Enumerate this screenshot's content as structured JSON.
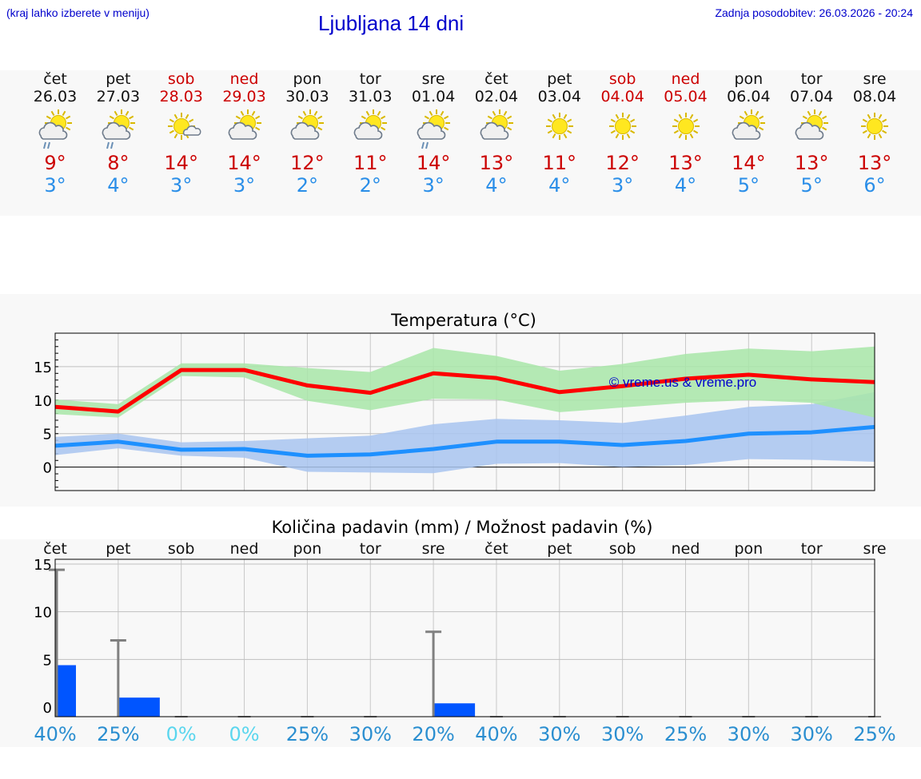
{
  "header": {
    "hint": "(kraj lahko izberete v meniju)",
    "title": "Ljubljana 14 dni",
    "updated": "Zadnja posodobitev: 26.03.2026 - 20:24"
  },
  "days": [
    {
      "name": "čet",
      "date": "26.03",
      "weekend": false,
      "icon": "sun-cloud-rain-icon",
      "tmax": "9°",
      "tmin": "3°"
    },
    {
      "name": "pet",
      "date": "27.03",
      "weekend": false,
      "icon": "sun-cloud-rain-icon",
      "tmax": "8°",
      "tmin": "4°"
    },
    {
      "name": "sob",
      "date": "28.03",
      "weekend": true,
      "icon": "sun-small-cloud-icon",
      "tmax": "14°",
      "tmin": "3°"
    },
    {
      "name": "ned",
      "date": "29.03",
      "weekend": true,
      "icon": "sun-cloud-icon",
      "tmax": "14°",
      "tmin": "3°"
    },
    {
      "name": "pon",
      "date": "30.03",
      "weekend": false,
      "icon": "sun-cloud-icon",
      "tmax": "12°",
      "tmin": "2°"
    },
    {
      "name": "tor",
      "date": "31.03",
      "weekend": false,
      "icon": "sun-cloud-icon",
      "tmax": "11°",
      "tmin": "2°"
    },
    {
      "name": "sre",
      "date": "01.04",
      "weekend": false,
      "icon": "sun-cloud-rain-icon",
      "tmax": "14°",
      "tmin": "3°"
    },
    {
      "name": "čet",
      "date": "02.04",
      "weekend": false,
      "icon": "sun-cloud-icon",
      "tmax": "13°",
      "tmin": "4°"
    },
    {
      "name": "pet",
      "date": "03.04",
      "weekend": false,
      "icon": "sun-icon",
      "tmax": "11°",
      "tmin": "4°"
    },
    {
      "name": "sob",
      "date": "04.04",
      "weekend": true,
      "icon": "sun-icon",
      "tmax": "12°",
      "tmin": "3°"
    },
    {
      "name": "ned",
      "date": "05.04",
      "weekend": true,
      "icon": "sun-icon",
      "tmax": "13°",
      "tmin": "4°"
    },
    {
      "name": "pon",
      "date": "06.04",
      "weekend": false,
      "icon": "sun-cloud-icon",
      "tmax": "14°",
      "tmin": "5°"
    },
    {
      "name": "tor",
      "date": "07.04",
      "weekend": false,
      "icon": "sun-cloud-icon",
      "tmax": "13°",
      "tmin": "5°"
    },
    {
      "name": "sre",
      "date": "08.04",
      "weekend": false,
      "icon": "sun-icon",
      "tmax": "13°",
      "tmin": "6°"
    }
  ],
  "colors": {
    "max_line": "#ff0000",
    "max_band": "#a8e6a8",
    "min_line": "#1e90ff",
    "min_band": "#a8c4f0",
    "precip_bar": "#0055ff",
    "error_bar": "#808080",
    "watermark": "#0000cc"
  },
  "chart_data": [
    {
      "type": "line",
      "title": "Temperatura (°C)",
      "ylim": [
        -3.5,
        20
      ],
      "yticks": [
        0,
        5,
        10,
        15
      ],
      "ytick_labels": [
        "0",
        "5",
        "10",
        "15"
      ],
      "watermark": "© vreme.us & vreme.pro",
      "series": [
        {
          "name": "max",
          "values": [
            9,
            8.3,
            14.5,
            14.5,
            12.2,
            11.1,
            14,
            13.3,
            11.2,
            12.1,
            13.2,
            13.8,
            13.1,
            12.7
          ],
          "band_low": [
            7.9,
            7.4,
            13.6,
            13.4,
            9.9,
            8.5,
            10.2,
            10.1,
            8.2,
            8.9,
            9.6,
            10.0,
            9.6,
            7.4
          ],
          "band_high": [
            10.1,
            9.4,
            15.5,
            15.5,
            14.8,
            14.2,
            17.8,
            16.6,
            14.4,
            15.4,
            16.9,
            17.7,
            17.3,
            18.0
          ]
        },
        {
          "name": "min",
          "values": [
            3.2,
            3.8,
            2.6,
            2.7,
            1.7,
            1.9,
            2.7,
            3.8,
            3.8,
            3.3,
            3.9,
            5.0,
            5.2,
            6.0
          ],
          "band_low": [
            1.8,
            2.8,
            1.7,
            1.4,
            -0.7,
            -0.8,
            -0.9,
            0.5,
            0.6,
            0.0,
            0.3,
            1.2,
            1.1,
            0.8
          ],
          "band_high": [
            4.5,
            5.0,
            3.7,
            3.9,
            4.3,
            4.7,
            6.4,
            7.2,
            7.0,
            6.6,
            7.7,
            9.0,
            9.4,
            11.2
          ]
        }
      ]
    },
    {
      "type": "bar",
      "title": "Količina padavin (mm) / Možnost padavin (%)",
      "categories": [
        "čet",
        "pet",
        "sob",
        "ned",
        "pon",
        "tor",
        "sre",
        "čet",
        "pet",
        "sob",
        "ned",
        "pon",
        "tor",
        "sre"
      ],
      "ylim": [
        -1,
        15.5
      ],
      "yticks": [
        0,
        5,
        10,
        15
      ],
      "ytick_labels": [
        "0",
        "5",
        "10",
        "15"
      ],
      "values": [
        4.4,
        1.0,
        0,
        0,
        0,
        0,
        0.4,
        0,
        0,
        0,
        0,
        0,
        0,
        0
      ],
      "error_high": [
        14.4,
        7.0,
        0,
        0,
        0,
        0,
        7.9,
        0,
        0,
        0,
        0,
        0,
        0,
        0
      ],
      "probability": [
        "40%",
        "25%",
        "0%",
        "0%",
        "25%",
        "30%",
        "20%",
        "40%",
        "30%",
        "30%",
        "25%",
        "30%",
        "30%",
        "25%"
      ],
      "probability_values": [
        40,
        25,
        0,
        0,
        25,
        30,
        20,
        40,
        30,
        30,
        25,
        30,
        30,
        25
      ]
    }
  ]
}
